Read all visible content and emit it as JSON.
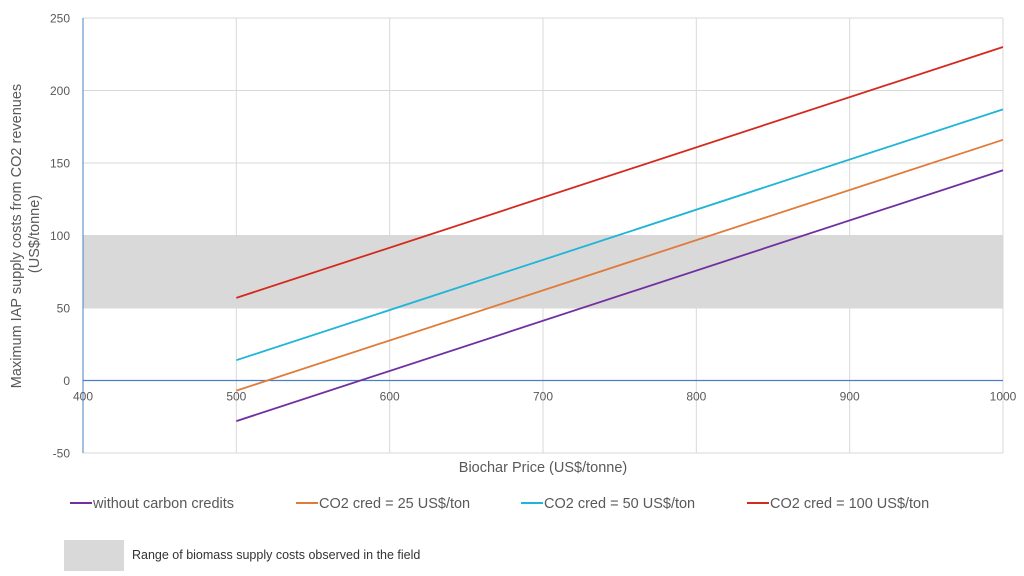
{
  "chart_data": {
    "type": "line",
    "title": "",
    "xlabel": "Biochar Price (US$/tonne)",
    "ylabel_line1": "Maximum IAP supply costs from CO2 revenues",
    "ylabel_line2": "(US$/tonne)",
    "xlim": [
      400,
      1000
    ],
    "ylim": [
      -50,
      250
    ],
    "xticks": [
      400,
      500,
      600,
      700,
      800,
      900,
      1000
    ],
    "yticks": [
      -50,
      0,
      50,
      100,
      150,
      200,
      250
    ],
    "grid": true,
    "legend_position": "bottom",
    "series": [
      {
        "name": "without carbon credits",
        "color": "#7030a0",
        "x": [
          500,
          1000
        ],
        "values": [
          -28,
          145
        ]
      },
      {
        "name": "CO2 cred = 25 US$/ton",
        "color": "#e07b39",
        "x": [
          500,
          1000
        ],
        "values": [
          -7,
          166
        ]
      },
      {
        "name": "CO2 cred = 50 US$/ton",
        "color": "#1fb5d6",
        "x": [
          500,
          1000
        ],
        "values": [
          14,
          187
        ]
      },
      {
        "name": "CO2 cred = 100 US$/ton",
        "color": "#d42a1e",
        "x": [
          500,
          1000
        ],
        "values": [
          57,
          230
        ]
      }
    ],
    "band": {
      "label": "Range of biomass supply costs observed in the field",
      "y_from": 50,
      "y_to": 100,
      "color": "#d9d9d9"
    }
  },
  "colors": {
    "grid": "#d9d9d9",
    "axis": "#4a7fc1",
    "text": "#595959"
  }
}
